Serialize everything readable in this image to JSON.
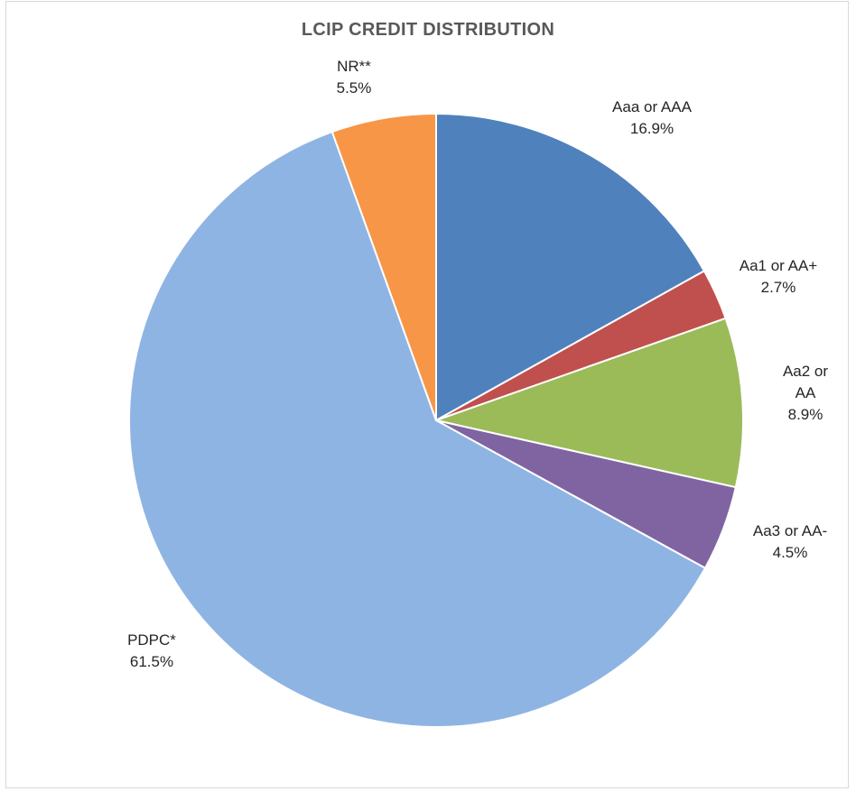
{
  "chart_data": {
    "type": "pie",
    "title": "LCIP CREDIT DISTRIBUTION",
    "slices": [
      {
        "label": [
          "Aaa or AAA"
        ],
        "pct": "16.9%",
        "value": 16.9,
        "color": "#4f81bd"
      },
      {
        "label": [
          "Aa1 or AA+"
        ],
        "pct": "2.7%",
        "value": 2.7,
        "color": "#c0504d"
      },
      {
        "label": [
          "Aa2 or",
          "AA"
        ],
        "pct": "8.9%",
        "value": 8.9,
        "color": "#9bbb59"
      },
      {
        "label": [
          "Aa3 or AA-"
        ],
        "pct": "4.5%",
        "value": 4.5,
        "color": "#8064a2"
      },
      {
        "label": [
          "PDPC*"
        ],
        "pct": "61.5%",
        "value": 61.5,
        "color": "#8eb4e3"
      },
      {
        "label": [
          "NR**"
        ],
        "pct": "5.5%",
        "value": 5.5,
        "color": "#f79646"
      }
    ],
    "legend": "none",
    "start_angle": "12 o'clock, clockwise"
  }
}
